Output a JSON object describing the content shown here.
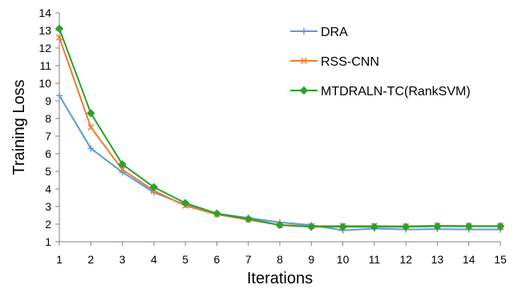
{
  "chart_data": {
    "type": "line",
    "title": "",
    "xlabel": "Iterations",
    "ylabel": "Training Loss",
    "x": [
      1,
      2,
      3,
      4,
      5,
      6,
      7,
      8,
      9,
      10,
      11,
      12,
      13,
      14,
      15
    ],
    "xlim": [
      1,
      15
    ],
    "ylim": [
      1,
      14
    ],
    "yticks": [
      1,
      2,
      3,
      4,
      5,
      6,
      7,
      8,
      9,
      10,
      11,
      12,
      13,
      14
    ],
    "grid": false,
    "legend_position": "top-right",
    "series": [
      {
        "name": "DRA",
        "color": "#5b9bd5",
        "marker": "plus",
        "values": [
          9.3,
          6.3,
          4.95,
          3.8,
          3.1,
          2.6,
          2.35,
          2.1,
          1.95,
          1.65,
          1.75,
          1.7,
          1.72,
          1.7,
          1.7
        ]
      },
      {
        "name": "RSS-CNN",
        "color": "#ed7d31",
        "marker": "x",
        "values": [
          12.6,
          7.5,
          5.1,
          3.9,
          3.05,
          2.55,
          2.25,
          1.95,
          1.9,
          1.9,
          1.9,
          1.88,
          1.92,
          1.9,
          1.9
        ]
      },
      {
        "name": "MTDRALN-TC(RankSVM)",
        "color": "#2ca02c",
        "marker": "diamond",
        "values": [
          13.1,
          8.3,
          5.4,
          4.1,
          3.2,
          2.6,
          2.3,
          1.95,
          1.85,
          1.85,
          1.85,
          1.85,
          1.88,
          1.88,
          1.88
        ]
      }
    ]
  }
}
